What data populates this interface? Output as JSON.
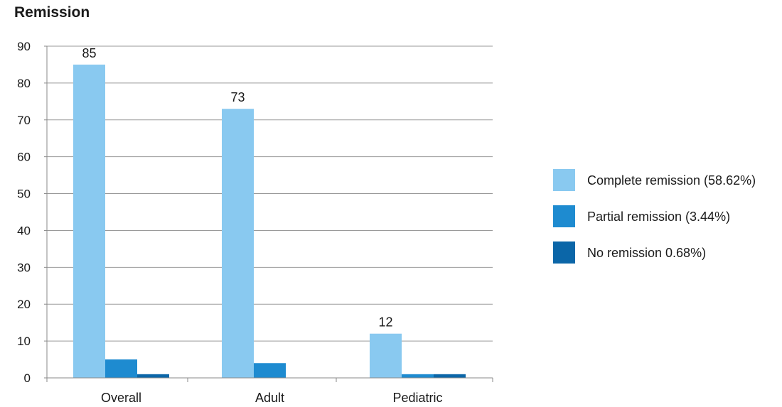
{
  "chart_data": {
    "type": "bar",
    "title": "Remission",
    "xlabel": "",
    "ylabel": "",
    "categories": [
      "Overall",
      "Adult",
      "Pediatric"
    ],
    "ylim": [
      0,
      90
    ],
    "yticks": [
      0,
      10,
      20,
      30,
      40,
      50,
      60,
      70,
      80,
      90
    ],
    "grid": true,
    "legend_position": "right",
    "series": [
      {
        "name": "Complete remission (58.62%)",
        "color": "#89C9F0",
        "values": [
          85,
          73,
          12
        ],
        "data_labels": [
          "85",
          "73",
          "12"
        ]
      },
      {
        "name": "Partial remission (3.44%)",
        "color": "#1E8BD0",
        "values": [
          5,
          4,
          1
        ],
        "data_labels": [
          null,
          null,
          null
        ]
      },
      {
        "name": "No remission 0.68%)",
        "color": "#0B66A8",
        "values": [
          1,
          0,
          1
        ],
        "data_labels": [
          null,
          null,
          null
        ]
      }
    ]
  }
}
